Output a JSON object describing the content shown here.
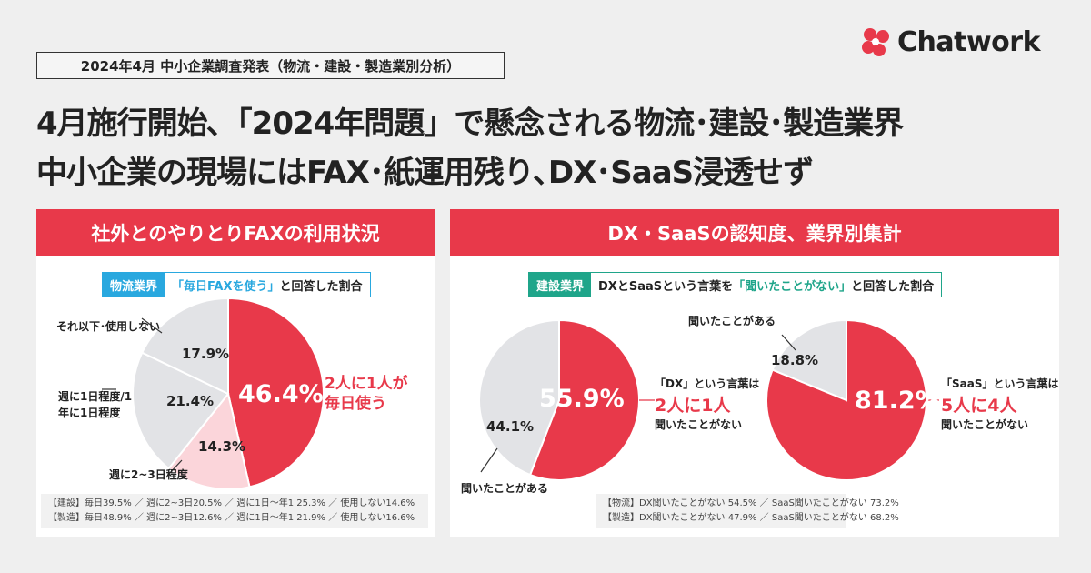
{
  "header": {
    "tag": "2024年4月 中小企業調査発表（物流・建設・製造業別分析）",
    "title_line1": "4月施行開始､「2024年問題」で懸念される物流･建設･製造業界",
    "title_line2": "中小企業の現場にはFAX･紙運用残り､DX･SaaS浸透せず",
    "logo": "Chatwork"
  },
  "colors": {
    "red": "#e8394a",
    "pink": "#fbd5da",
    "gray": "#e2e3e6",
    "blue": "#29a8df",
    "green": "#1fa58a"
  },
  "left": {
    "heading": "社外とのやりとりFAXの利用状況",
    "sub_key": "物流業界",
    "sub_quote": "「毎日FAXを使う」",
    "sub_rest": "と回答した割合",
    "callout1": "2人に1人が",
    "callout2": "毎日使う",
    "notes": [
      "【建設】毎日39.5% ／ 週に2~3日20.5% ／ 週に1日～年1 25.3% ／ 使用しない14.6%",
      "【製造】毎日48.9% ／ 週に2~3日12.6% ／ 週に1日～年1 21.9% ／ 使用しない16.6%"
    ]
  },
  "right": {
    "heading": "DX・SaaSの認知度、業界別集計",
    "sub_key": "建設業界",
    "sub_pre": "DXとSaaSという言葉を",
    "sub_quote": "「聞いたことがない」",
    "sub_rest": "と回答した割合",
    "dx_callout": [
      "「DX」という言葉は",
      "2人に1人",
      "聞いたことがない"
    ],
    "saas_callout": [
      "「SaaS」という言葉は",
      "5人に4人",
      "聞いたことがない"
    ],
    "notes": [
      "【物流】DX聞いたことがない 54.5% ／ SaaS聞いたことがない 73.2%",
      "【製造】DX聞いたことがない 47.9% ／ SaaS聞いたことがない 68.2%"
    ]
  },
  "chart_data": [
    {
      "type": "pie",
      "title": "「毎日FAXを使う」と回答した割合",
      "categories": [
        "毎日",
        "週に2~3日程度",
        "週に1日程度/1年に1日程度",
        "それ以下･使用しない"
      ],
      "values": [
        46.4,
        14.3,
        21.4,
        17.9
      ],
      "labels": [
        "46.4%",
        "14.3%",
        "21.4%",
        "17.9%"
      ],
      "colors": [
        "#e8394a",
        "#fbd5da",
        "#e2e3e6",
        "#e2e3e6"
      ]
    },
    {
      "type": "pie",
      "categories": [
        "聞いたことがない",
        "聞いたことがある"
      ],
      "values": [
        55.9,
        44.1
      ],
      "labels": [
        "55.9%",
        "44.1%"
      ],
      "colors": [
        "#e8394a",
        "#e2e3e6"
      ]
    },
    {
      "type": "pie",
      "categories": [
        "聞いたことがない",
        "聞いたことがある"
      ],
      "values": [
        81.2,
        18.8
      ],
      "labels": [
        "81.2%",
        "18.8%"
      ],
      "colors": [
        "#e8394a",
        "#e2e3e6"
      ]
    }
  ]
}
